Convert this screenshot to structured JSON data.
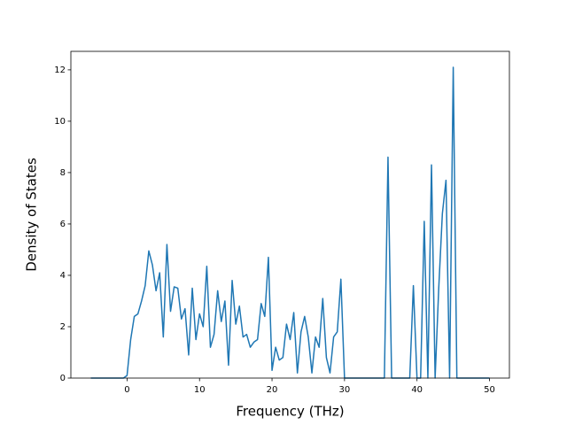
{
  "chart_data": {
    "type": "line",
    "xlabel": "Frequency (THz)",
    "ylabel": "Density of States",
    "x": [
      -5,
      -4.5,
      -4,
      -3.5,
      -3,
      -2.5,
      -2,
      -1.5,
      -1,
      -0.5,
      0,
      0.5,
      1,
      1.5,
      2,
      2.5,
      3,
      3.5,
      4,
      4.5,
      5,
      5.5,
      6,
      6.5,
      7,
      7.5,
      8,
      8.5,
      9,
      9.5,
      10,
      10.5,
      11,
      11.5,
      12,
      12.5,
      13,
      13.5,
      14,
      14.5,
      15,
      15.5,
      16,
      16.5,
      17,
      17.5,
      18,
      18.5,
      19,
      19.5,
      20,
      20.5,
      21,
      21.5,
      22,
      22.5,
      23,
      23.5,
      24,
      24.5,
      25,
      25.5,
      26,
      26.5,
      27,
      27.5,
      28,
      28.5,
      29,
      29.5,
      30,
      30.5,
      31,
      31.5,
      32,
      32.5,
      33,
      33.5,
      34,
      34.5,
      35,
      35.5,
      36,
      36.5,
      37,
      37.5,
      38,
      38.5,
      39,
      39.5,
      40,
      40.5,
      41,
      41.5,
      42,
      42.5,
      43,
      43.5,
      44,
      44.5,
      45,
      45.5,
      46,
      46.5,
      47,
      47.5,
      48,
      48.5,
      49,
      49.5,
      50
    ],
    "series": [
      {
        "color": "#1f77b4",
        "values": [
          0,
          0,
          0,
          0,
          0,
          0,
          0,
          0,
          0,
          0,
          0.1,
          1.5,
          2.4,
          2.5,
          3.0,
          3.6,
          4.95,
          4.4,
          3.4,
          4.1,
          1.6,
          5.2,
          2.6,
          3.55,
          3.5,
          2.3,
          2.7,
          0.9,
          3.5,
          1.5,
          2.5,
          2.0,
          4.35,
          1.2,
          1.7,
          3.4,
          2.2,
          3.0,
          0.5,
          3.8,
          2.1,
          2.8,
          1.6,
          1.7,
          1.2,
          1.4,
          1.5,
          2.9,
          2.4,
          4.7,
          0.3,
          1.2,
          0.7,
          0.8,
          2.1,
          1.5,
          2.55,
          0.2,
          1.8,
          2.4,
          1.6,
          0.2,
          1.6,
          1.2,
          3.1,
          0.8,
          0.2,
          1.6,
          1.8,
          3.85,
          0,
          0,
          0,
          0,
          0,
          0,
          0,
          0,
          0,
          0,
          0,
          0,
          8.6,
          0,
          0,
          0,
          0,
          0,
          0,
          3.6,
          0,
          0,
          6.1,
          0,
          8.3,
          0,
          3.5,
          6.4,
          7.7,
          0,
          12.1,
          0,
          0,
          0,
          0,
          0,
          0,
          0,
          0,
          0,
          0
        ]
      }
    ],
    "xlim": [
      -7.75,
      52.75
    ],
    "ylim": [
      0,
      12.72
    ],
    "xticks": [
      0,
      10,
      20,
      30,
      40,
      50
    ],
    "yticks": [
      0,
      2,
      4,
      6,
      8,
      10,
      12
    ]
  }
}
